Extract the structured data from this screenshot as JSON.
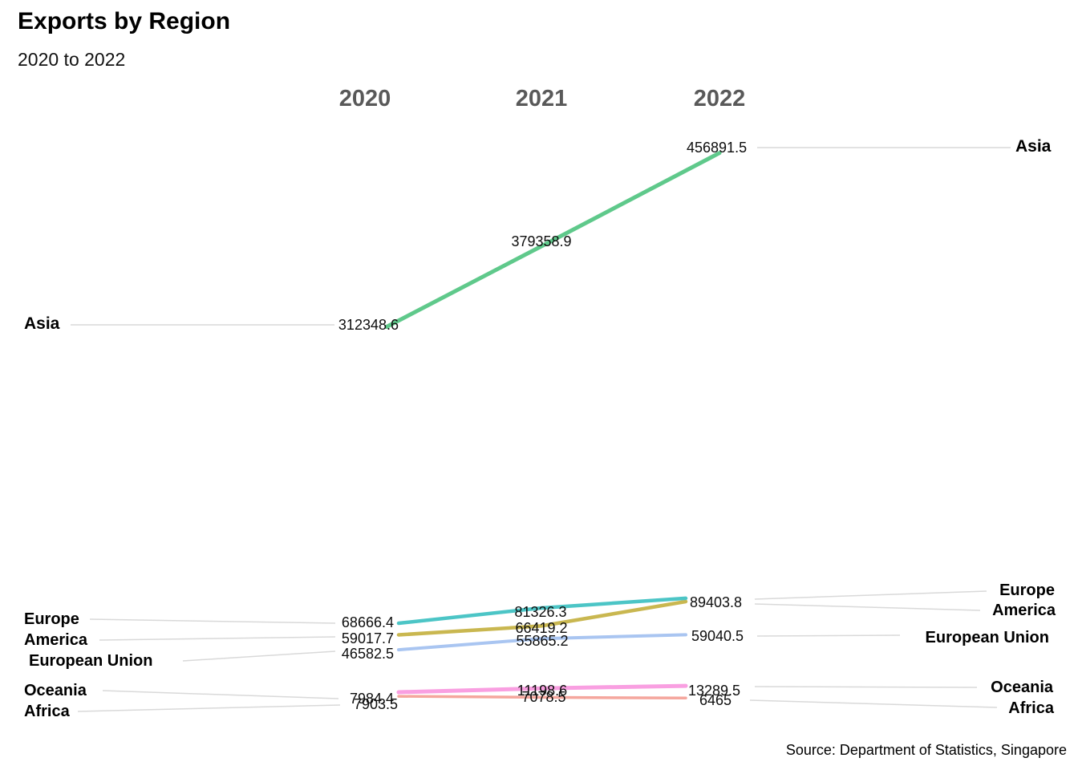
{
  "title": "Exports by Region",
  "subtitle": "2020 to 2022",
  "source": "Source: Department of Statistics, Singapore",
  "columns": [
    "2020",
    "2021",
    "2022"
  ],
  "colors": {
    "asia": "#5fc98b",
    "europe": "#4cc5c6",
    "america": "#c9b750",
    "european_union": "#a9c5f1",
    "oceania": "#f99fe1",
    "africa": "#f5a69d",
    "leader_line": "#d9d9d9",
    "column_header": "#595959"
  },
  "regions": {
    "asia": "Asia",
    "europe": "Europe",
    "america": "America",
    "eu": "European Union",
    "oceania": "Oceania",
    "africa": "Africa"
  },
  "labels": {
    "asia_2020": "312348.6",
    "asia_2021": "379358.9",
    "asia_2022": "456891.5",
    "europe_2020": "68666.4",
    "europe_2021": "81326.3",
    "europe_2022": "89403.8",
    "america_2020": "59017.7",
    "america_2021": "66419.2",
    "eu_2020": "46582.5",
    "eu_2021": "55865.2",
    "eu_2022": "59040.5",
    "oceania_2020": "7984.4",
    "oceania_2021": "11198.6",
    "oceania_2022": "13289.5",
    "africa_2020": "7903.5",
    "africa_2021": "7078.5",
    "africa_2022": "6465"
  },
  "chart_data": {
    "type": "line",
    "title": "Exports by Region",
    "subtitle": "2020 to 2022",
    "x": [
      "2020",
      "2021",
      "2022"
    ],
    "series": [
      {
        "name": "Asia",
        "color": "#5fc98b",
        "values": [
          312348.6,
          379358.9,
          456891.5
        ]
      },
      {
        "name": "Europe",
        "color": "#4cc5c6",
        "values": [
          68666.4,
          81326.3,
          89403.8
        ]
      },
      {
        "name": "America",
        "color": "#c9b750",
        "values": [
          59017.7,
          66419.2,
          86700
        ]
      },
      {
        "name": "European Union",
        "color": "#a9c5f1",
        "values": [
          46582.5,
          55865.2,
          59040.5
        ]
      },
      {
        "name": "Oceania",
        "color": "#f99fe1",
        "values": [
          7984.4,
          11198.6,
          13289.5
        ]
      },
      {
        "name": "Africa",
        "color": "#f5a69d",
        "values": [
          7903.5,
          7078.5,
          6465
        ]
      }
    ],
    "legend_position": "direct-labels-both-sides",
    "grid": false,
    "annotation": "Source: Department of Statistics, Singapore"
  }
}
